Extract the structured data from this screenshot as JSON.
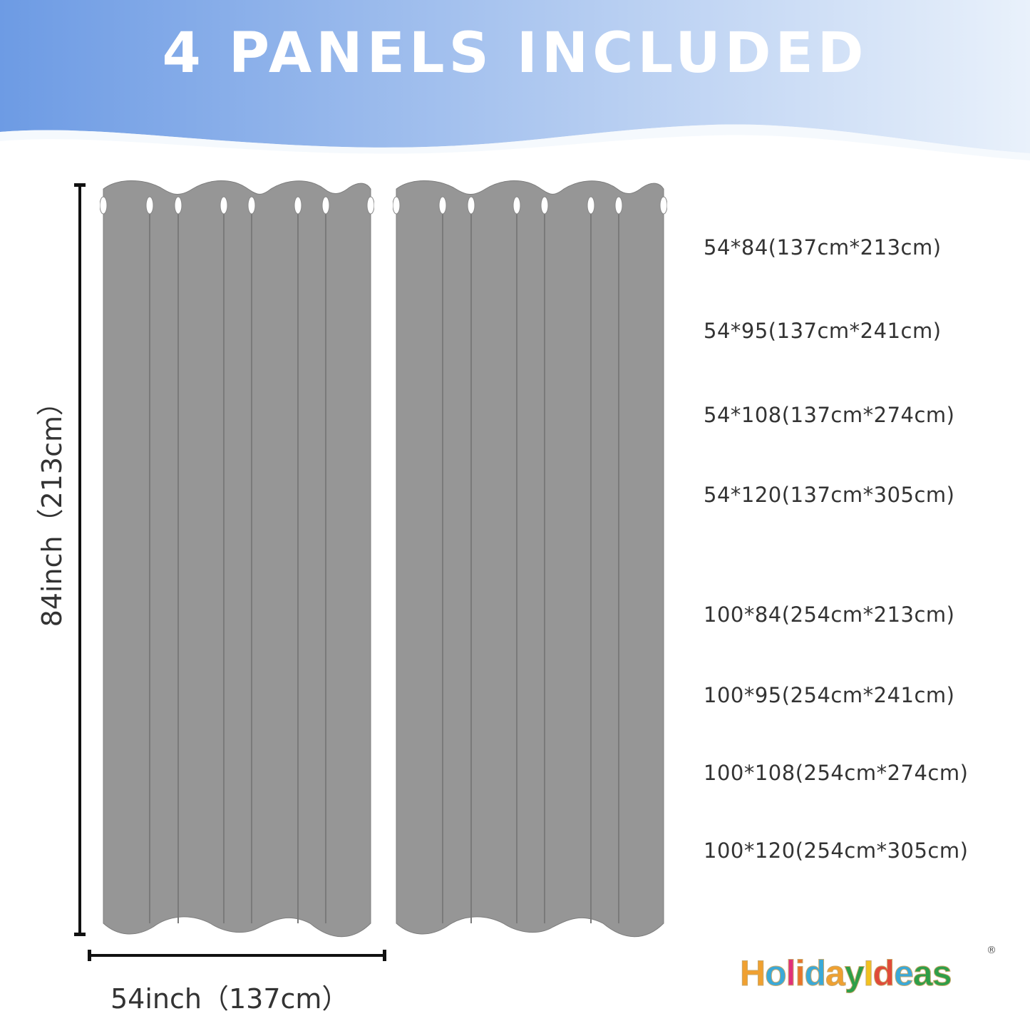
{
  "header": {
    "title": "4 PANELS INCLUDED",
    "gradient_colors": [
      "#6d9be4",
      "#e9f1fb"
    ]
  },
  "panel_color": "#969696",
  "sizes": [
    "54*84(137cm*213cm)",
    "54*95(137cm*241cm)",
    "54*108(137cm*274cm)",
    "54*120(137cm*305cm)",
    "100*84(254cm*213cm)",
    "100*95(254cm*241cm)",
    "100*108(254cm*274cm)",
    "100*120(254cm*305cm)"
  ],
  "dimensions": {
    "height_label": "84inch（213cm）",
    "width_label": "54inch（137cm）"
  },
  "logo": {
    "text": "HolidayIdeas",
    "registered": "®"
  }
}
